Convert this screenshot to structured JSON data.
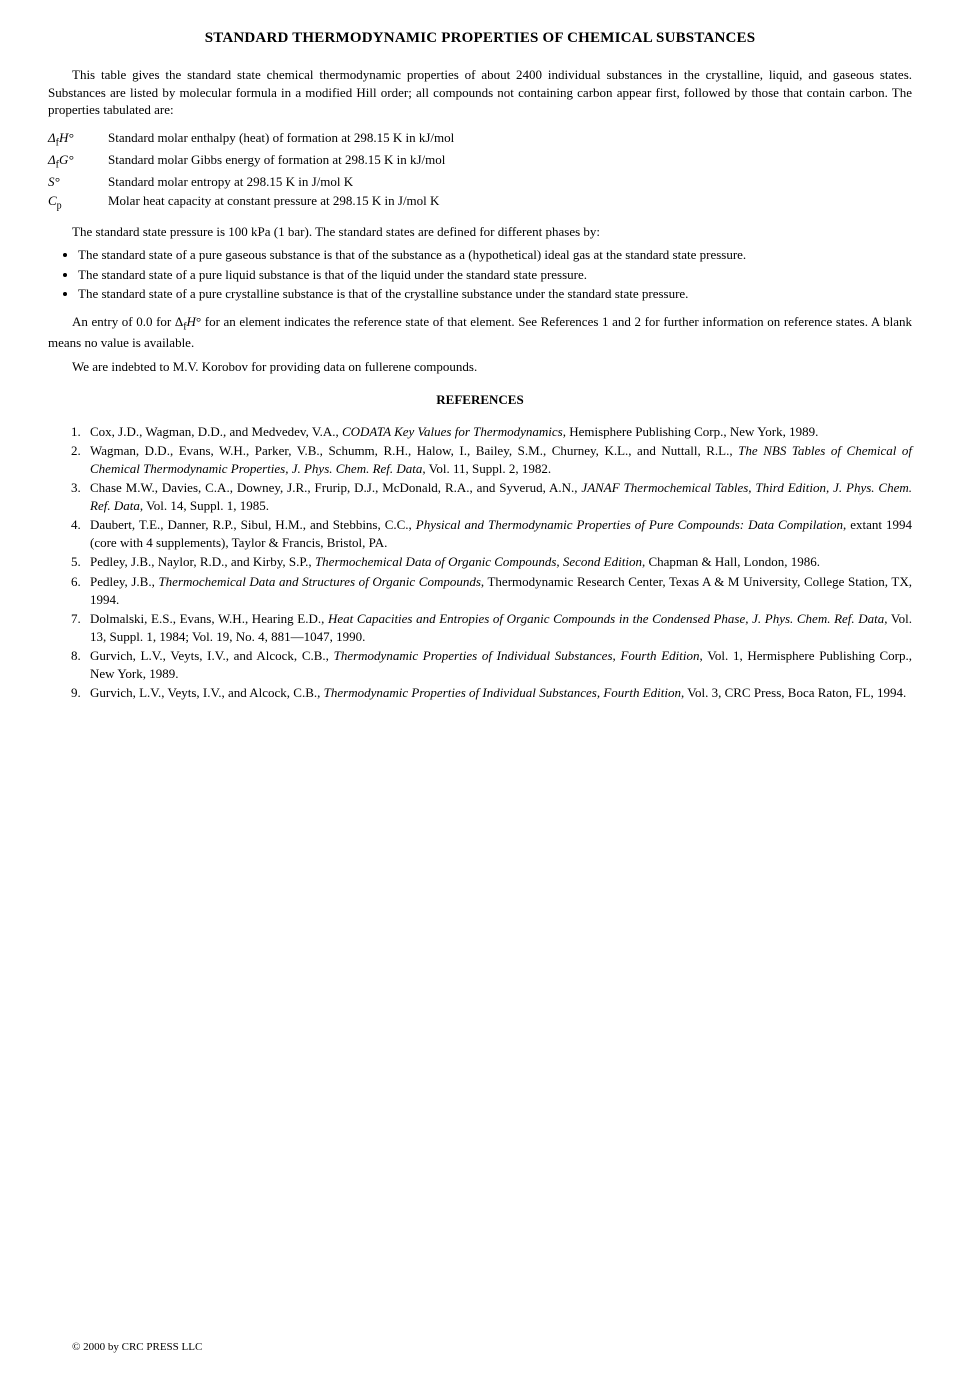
{
  "title": "STANDARD THERMODYNAMIC PROPERTIES OF CHEMICAL SUBSTANCES",
  "intro": "This table gives the standard state chemical thermodynamic properties of about 2400 individual substances in the crystalline, liquid, and gaseous states. Substances are listed by molecular formula in a modified Hill order; all compounds not containing carbon appear first, followed by those that contain carbon. The properties tabulated are:",
  "properties": [
    {
      "symbol_html": "Δ<span class='sub'>f</span><i>H</i>°",
      "desc": "Standard molar enthalpy (heat) of formation at 298.15 K in kJ/mol"
    },
    {
      "symbol_html": "Δ<span class='sub'>f</span><i>G</i>°",
      "desc": "Standard molar Gibbs energy of formation at 298.15 K in kJ/mol"
    },
    {
      "symbol_html": "<i>S</i>°",
      "desc": "Standard molar entropy at 298.15 K in J/mol K"
    },
    {
      "symbol_html": "<i>C</i><span class='sub'>p</span>",
      "desc": "Molar heat capacity at constant pressure at 298.15 K in J/mol K"
    }
  ],
  "std_state_intro": "The standard state pressure is 100 kPa (1 bar). The standard states are defined for different phases by:",
  "std_state_bullets": [
    "The standard state of a pure gaseous substance is that of the substance as a (hypothetical) ideal gas at the standard state pressure.",
    "The standard state of a pure liquid substance is that of the liquid under the standard state pressure.",
    "The standard state of a pure crystalline substance is that of the crystalline substance under the standard state pressure."
  ],
  "entry_note_pre": "An entry of 0.0 for Δ",
  "entry_note_sym": "H",
  "entry_note_post": "° for an element indicates the reference state of that element. See References 1 and 2 for further information on reference states. A blank means no value is available.",
  "indebted": "We are indebted to M.V. Korobov for providing data on fullerene compounds.",
  "references_heading": "REFERENCES",
  "references": [
    "Cox, J.D., Wagman, D.D., and Medvedev, V.A., <span class='ital'>CODATA Key Values for Thermodynamics</span>, Hemisphere Publishing Corp., New York, 1989.",
    "Wagman, D.D., Evans, W.H., Parker, V.B., Schumm, R.H., Halow, I., Bailey, S.M., Churney, K.L., and Nuttall, R.L., <span class='ital'>The NBS Tables of Chemical of Chemical Thermodynamic Properties, J. Phys. Chem. Ref. Data</span>, Vol. 11, Suppl. 2, 1982.",
    "Chase M.W., Davies, C.A., Downey, J.R., Frurip, D.J., McDonald, R.A., and Syverud, A.N., <span class='ital'>JANAF Thermochemical Tables, Third Edition, J. Phys. Chem. Ref. Data</span>, Vol. 14, Suppl. 1, 1985.",
    "Daubert, T.E., Danner, R.P., Sibul, H.M., and Stebbins, C.C., <span class='ital'>Physical and Thermodynamic Properties of Pure Compounds: Data Compilation</span>, extant 1994 (core with 4 supplements), Taylor & Francis, Bristol, PA.",
    "Pedley, J.B., Naylor, R.D., and Kirby, S.P., <span class='ital'>Thermochemical Data of Organic Compounds, Second Edition</span>, Chapman & Hall, London, 1986.",
    "Pedley, J.B., <span class='ital'>Thermochemical Data and Structures of Organic Compounds</span>, Thermodynamic Research Center, Texas A & M University, College Station, TX, 1994.",
    "Dolmalski, E.S., Evans, W.H., Hearing E.D., <span class='ital'>Heat Capacities and Entropies of Organic Compounds in the Condensed Phase, J. Phys. Chem. Ref. Data</span>, Vol. 13, Suppl. 1, 1984; Vol. 19, No. 4, 881—1047, 1990.",
    "Gurvich, L.V., Veyts, I.V., and Alcock, C.B., <span class='ital'>Thermodynamic Properties of Individual Substances, Fourth Edition</span>, Vol. 1, Hermisphere Publishing Corp., New York, 1989.",
    "Gurvich, L.V., Veyts, I.V., and Alcock, C.B., <span class='ital'>Thermodynamic Properties of Individual Substances, Fourth Edition</span>, Vol. 3, CRC Press, Boca Raton, FL, 1994."
  ],
  "footer": "© 2000 by CRC PRESS LLC"
}
